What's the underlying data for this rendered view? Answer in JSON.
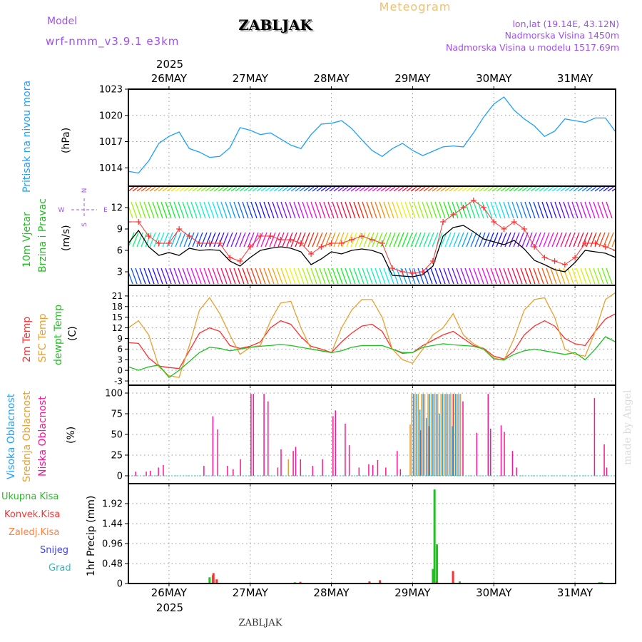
{
  "header": {
    "title": "Meteogram",
    "model_label": "Model",
    "model_name": "wrf-nmm_v3.9.1 e3km",
    "station": "ZABLJAK",
    "lonlat": "lon,lat (19.14E, 43.12N)",
    "elevation": "Nadmorska Visina 1450m",
    "model_elevation": "Nadmorska Visina u modelu 1517.69m",
    "footer_station": "ZABLJAK",
    "watermark": "made by Angel"
  },
  "colors": {
    "pressure": "#1ea0ff",
    "wind": "#000000",
    "gust": "#ff3030",
    "t2m": "#ff3030",
    "tsfc": "#e8a030",
    "dew": "#20c020",
    "low_cloud": "#ff1493",
    "mid_cloud": "#e8a030",
    "high_cloud": "#1ea0ff",
    "total_precip": "#20c020",
    "conv_precip": "#ff3030",
    "purple": "#a050f0"
  },
  "chart_data": [
    {
      "type": "line",
      "title": "Pritisak na nivou mora",
      "ylabel": "(hPa)",
      "xaxis": {
        "range_days": [
          25.5,
          31.5
        ],
        "year": "2025",
        "ticks": [
          26,
          27,
          28,
          29,
          30,
          31
        ],
        "tick_labels": [
          "26MAY",
          "27MAY",
          "28MAY",
          "29MAY",
          "30MAY",
          "31MAY"
        ]
      },
      "ylim": [
        1011.9,
        1023
      ],
      "yticks": [
        1014,
        1017,
        1020,
        1023
      ],
      "x_start_day": 25.5,
      "step_hours": 3,
      "series": [
        {
          "name": "Pressure",
          "values": [
            1013.6,
            1013.4,
            1014.8,
            1016.8,
            1017.6,
            1018.1,
            1016.2,
            1015.8,
            1015.2,
            1015.3,
            1016.3,
            1018.6,
            1018.3,
            1017.8,
            1018.0,
            1017.3,
            1016.6,
            1016.2,
            1017.8,
            1019.0,
            1019.1,
            1019.4,
            1018.5,
            1017.2,
            1016.0,
            1015.3,
            1016.2,
            1016.8,
            1016.0,
            1015.4,
            1015.9,
            1016.4,
            1016.5,
            1016.4,
            1018.0,
            1019.8,
            1021.3,
            1022.1,
            1020.6,
            1019.6,
            1018.8,
            1017.6,
            1018.2,
            1019.6,
            1019.4,
            1019.2,
            1019.7,
            1019.7,
            1018.1
          ]
        }
      ]
    },
    {
      "type": "line",
      "title": "10m Vjetar",
      "subtitle": "Brzina i Pravac",
      "ylabel": "(m/s)",
      "compass": {
        "n": "N",
        "s": "S",
        "e": "E",
        "w": "W"
      },
      "ylim": [
        1.1,
        15
      ],
      "yticks": [
        3,
        6,
        9,
        12
      ],
      "x_start_day": 25.5,
      "step_hours": 3,
      "series": [
        {
          "name": "Wind speed",
          "values": [
            7.0,
            8.8,
            6.5,
            5.3,
            5.7,
            5.3,
            6.3,
            6.0,
            6.1,
            6.0,
            4.5,
            3.8,
            5.0,
            6.0,
            6.3,
            6.5,
            6.3,
            5.8,
            4.0,
            4.8,
            5.8,
            5.5,
            6.0,
            6.2,
            6.0,
            5.5,
            2.5,
            2.4,
            2.3,
            2.6,
            3.8,
            8.0,
            9.2,
            9.5,
            8.6,
            7.6,
            7.2,
            6.8,
            7.4,
            6.2,
            4.6,
            4.0,
            3.3,
            3.0,
            4.3,
            6.0,
            5.8,
            5.6,
            5.0
          ]
        },
        {
          "name": "Gust",
          "values": [
            10,
            10,
            8,
            7,
            7,
            9,
            8,
            7,
            7,
            7,
            5,
            4.5,
            6.5,
            8,
            8,
            7.5,
            7.5,
            7,
            5.5,
            6.5,
            7,
            7,
            7.5,
            8,
            7.5,
            7,
            3.5,
            3,
            2.8,
            3,
            4.5,
            10,
            11,
            12,
            13,
            12,
            10,
            9,
            10,
            9,
            6.5,
            5,
            4.5,
            4,
            5,
            7,
            7,
            6.5,
            6
          ]
        }
      ]
    },
    {
      "type": "line",
      "title": "Temperatura",
      "legend": [
        "2m Temp",
        "SFC Temp",
        "dewpt Temp"
      ],
      "ylabel": "(C)",
      "ylim": [
        -4.2,
        24
      ],
      "yticks": [
        -3,
        0,
        3,
        6,
        9,
        12,
        15,
        18,
        21
      ],
      "x_start_day": 25.5,
      "step_hours": 3,
      "series": [
        {
          "name": "2m Temp",
          "values": [
            7.8,
            7.6,
            3.5,
            1.2,
            0.8,
            0.5,
            5.5,
            10.5,
            12,
            11,
            7,
            6.2,
            6.8,
            8,
            12,
            14,
            13,
            9.5,
            6.8,
            6,
            5,
            8,
            10.5,
            12.5,
            13,
            11,
            6,
            4.8,
            5,
            7,
            8.5,
            10,
            11,
            9,
            7,
            6.2,
            4,
            3.2,
            5.5,
            10,
            12.5,
            14,
            12.5,
            9,
            7.5,
            7,
            11,
            14.5,
            16
          ]
        },
        {
          "name": "SFC Temp",
          "values": [
            12,
            14,
            10,
            1,
            -1.5,
            -2,
            7,
            17,
            20.5,
            16,
            10,
            4.5,
            6.5,
            7,
            14,
            19,
            19.5,
            12,
            6,
            5.5,
            5,
            12,
            17,
            20,
            20,
            15,
            6,
            3,
            2,
            6,
            10,
            12,
            16,
            10,
            7.5,
            6,
            3.5,
            2.8,
            9,
            17,
            20,
            20.5,
            15,
            6,
            4.5,
            4,
            11,
            20,
            22
          ]
        },
        {
          "name": "dewpt Temp",
          "values": [
            1,
            0,
            1,
            1.5,
            -2,
            0,
            2.5,
            5,
            6.5,
            6.2,
            5.5,
            6,
            6.5,
            6.8,
            7,
            7.3,
            7,
            6.5,
            6,
            5.5,
            5,
            5.5,
            6.5,
            7,
            7,
            7,
            6,
            5,
            5,
            6.5,
            7,
            7.5,
            7.2,
            7,
            6.8,
            6,
            3.2,
            3,
            4.5,
            5.5,
            6,
            5.5,
            5,
            4.5,
            5,
            3,
            6,
            9.5,
            8
          ]
        }
      ]
    },
    {
      "type": "bar",
      "title": "Oblacnost",
      "legend": [
        "Visoka Oblacnost",
        "Srednja Oblacnost",
        "Niska Oblacnost"
      ],
      "ylabel": "(%)",
      "ylim": [
        -9.5,
        109.5
      ],
      "yticks": [
        0,
        25,
        50,
        75,
        100
      ],
      "series": [
        {
          "name": "Niska Oblacnost",
          "points": [
            [
              25.59,
              5
            ],
            [
              25.72,
              5
            ],
            [
              25.77,
              6
            ],
            [
              25.87,
              10
            ],
            [
              25.93,
              13
            ],
            [
              26.43,
              12
            ],
            [
              26.54,
              72
            ],
            [
              26.6,
              56
            ],
            [
              26.72,
              12
            ],
            [
              26.79,
              8
            ],
            [
              26.88,
              20
            ],
            [
              27.01,
              99
            ],
            [
              27.04,
              99
            ],
            [
              27.17,
              99
            ],
            [
              27.22,
              90
            ],
            [
              27.34,
              10
            ],
            [
              27.38,
              32
            ],
            [
              27.53,
              30
            ],
            [
              27.56,
              35
            ],
            [
              27.62,
              20
            ],
            [
              27.77,
              12
            ],
            [
              27.89,
              20
            ],
            [
              28.02,
              72
            ],
            [
              28.05,
              79
            ],
            [
              28.17,
              63
            ],
            [
              28.22,
              37
            ],
            [
              28.34,
              10
            ],
            [
              28.46,
              14
            ],
            [
              28.51,
              13
            ],
            [
              28.57,
              19
            ],
            [
              28.67,
              10
            ],
            [
              28.81,
              30
            ],
            [
              28.85,
              8
            ],
            [
              29.1,
              55
            ],
            [
              29.2,
              60
            ],
            [
              29.35,
              40
            ],
            [
              29.5,
              99
            ],
            [
              29.62,
              90
            ],
            [
              29.79,
              52
            ],
            [
              29.93,
              99
            ],
            [
              29.96,
              57
            ],
            [
              30.09,
              61
            ],
            [
              30.13,
              53
            ],
            [
              30.23,
              30
            ],
            [
              30.28,
              10
            ],
            [
              31.24,
              94
            ],
            [
              31.36,
              38
            ],
            [
              31.39,
              10
            ]
          ]
        },
        {
          "name": "Srednja Oblacnost",
          "points": [
            [
              27.47,
              20
            ],
            [
              28.97,
              62
            ],
            [
              28.99,
              99
            ],
            [
              29.03,
              99
            ],
            [
              29.07,
              99
            ],
            [
              29.11,
              99
            ],
            [
              29.15,
              99
            ],
            [
              29.19,
              99
            ],
            [
              29.23,
              99
            ],
            [
              29.27,
              99
            ],
            [
              29.31,
              99
            ],
            [
              29.35,
              99
            ],
            [
              29.39,
              99
            ],
            [
              29.43,
              99
            ],
            [
              29.47,
              99
            ],
            [
              29.51,
              99
            ],
            [
              29.55,
              99
            ],
            [
              29.59,
              99
            ]
          ]
        },
        {
          "name": "Visoka Oblacnost",
          "points": [
            [
              29.01,
              99
            ],
            [
              29.05,
              99
            ],
            [
              29.09,
              80
            ],
            [
              29.13,
              99
            ],
            [
              29.17,
              70
            ],
            [
              29.21,
              99
            ],
            [
              29.25,
              99
            ],
            [
              29.29,
              99
            ],
            [
              29.33,
              75
            ],
            [
              29.37,
              99
            ],
            [
              29.41,
              99
            ],
            [
              29.45,
              99
            ],
            [
              29.49,
              60
            ],
            [
              29.53,
              99
            ],
            [
              29.57,
              99
            ]
          ]
        }
      ]
    },
    {
      "type": "bar",
      "title": "1hr Precip",
      "legend": [
        "Ukupna Kisa",
        "Konvek.Kisa",
        "Zaledj.Kisa",
        "Snijeg",
        "Grad"
      ],
      "ylabel": "1hr Precip (mm)",
      "ylim": [
        0,
        2.4
      ],
      "yticks": [
        0,
        0.48,
        0.96,
        1.44,
        1.92
      ],
      "ytick_labels": [
        "0",
        "0.48",
        "0.96",
        "1.44",
        "1.92"
      ],
      "series": [
        {
          "name": "Ukupna Kisa",
          "points": [
            [
              26.5,
              0.15
            ],
            [
              26.54,
              0.2
            ],
            [
              27.55,
              0.03
            ],
            [
              28.47,
              0.04
            ],
            [
              28.6,
              0.05
            ],
            [
              29.25,
              0.35
            ],
            [
              29.27,
              2.26
            ],
            [
              29.3,
              0.94
            ],
            [
              29.5,
              0.03
            ],
            [
              29.58,
              0.05
            ],
            [
              31.3,
              0.03
            ],
            [
              31.33,
              0.03
            ]
          ]
        },
        {
          "name": "Konvek.Kisa",
          "points": [
            [
              26.53,
              0.25
            ],
            [
              26.57,
              0.1
            ],
            [
              27.6,
              0.04
            ],
            [
              28.45,
              0.05
            ],
            [
              28.58,
              0.08
            ],
            [
              29.28,
              0.05
            ],
            [
              29.48,
              0.3
            ]
          ]
        }
      ]
    }
  ]
}
